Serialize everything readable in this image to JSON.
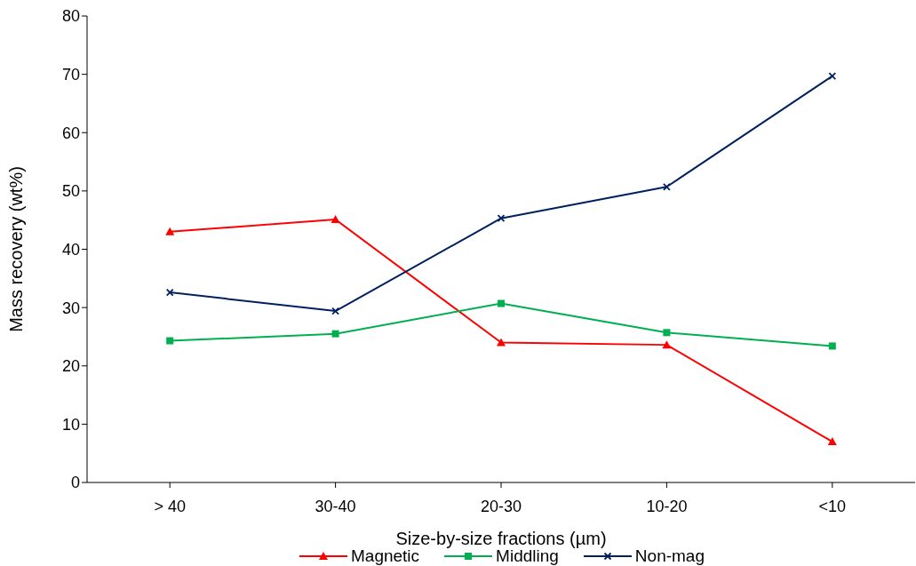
{
  "chart_data": {
    "type": "line",
    "xlabel": "Size-by-size fractions (µm)",
    "ylabel": "Mass recovery (wt%)",
    "categories": [
      "> 40",
      "30-40",
      "20-30",
      "10-20",
      "<10"
    ],
    "series": [
      {
        "name": "Magnetic",
        "color": "#ff0000",
        "marker": "triangle",
        "values": [
          43,
          45.1,
          24,
          23.6,
          7
        ]
      },
      {
        "name": "Middling",
        "color": "#00b050",
        "marker": "square",
        "values": [
          24.3,
          25.5,
          30.7,
          25.7,
          23.4
        ]
      },
      {
        "name": "Non-mag",
        "color": "#002060",
        "marker": "cross",
        "values": [
          32.6,
          29.4,
          45.3,
          50.7,
          69.7
        ]
      }
    ],
    "ylim": [
      0,
      80
    ],
    "yticks": [
      0,
      10,
      20,
      30,
      40,
      50,
      60,
      70,
      80
    ],
    "grid": false,
    "legend": "bottom",
    "line_style": "solid"
  }
}
